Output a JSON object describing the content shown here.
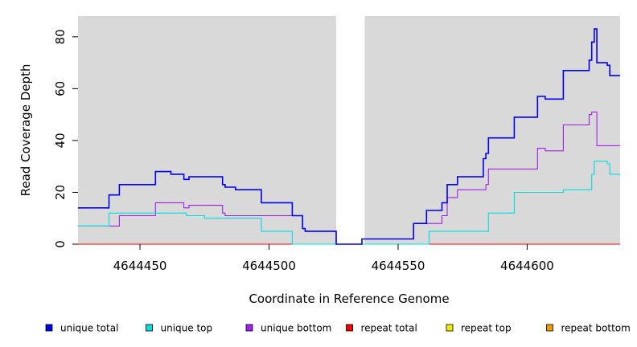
{
  "chart_data": {
    "type": "line",
    "xlabel": "Coordinate in Reference Genome",
    "ylabel": "Read Coverage Depth",
    "xlim": [
      4644426,
      4644636
    ],
    "ylim": [
      0,
      88
    ],
    "x_ticks": [
      4644450,
      4644500,
      4644550,
      4644600
    ],
    "y_ticks": [
      0,
      20,
      40,
      60,
      80
    ],
    "background": "#d9d9d9",
    "gap_region": [
      4644526,
      4644537
    ],
    "legend_position": "bottom",
    "series": [
      {
        "name": "unique total",
        "color": "#0000ee",
        "points": [
          [
            4644426,
            14
          ],
          [
            4644438,
            14
          ],
          [
            4644438,
            19
          ],
          [
            4644442,
            19
          ],
          [
            4644442,
            23
          ],
          [
            4644456,
            23
          ],
          [
            4644456,
            28
          ],
          [
            4644462,
            28
          ],
          [
            4644462,
            27
          ],
          [
            4644467,
            27
          ],
          [
            4644467,
            25
          ],
          [
            4644469,
            25
          ],
          [
            4644469,
            26
          ],
          [
            4644482,
            26
          ],
          [
            4644482,
            23
          ],
          [
            4644483,
            23
          ],
          [
            4644483,
            22
          ],
          [
            4644487,
            22
          ],
          [
            4644487,
            21
          ],
          [
            4644497,
            21
          ],
          [
            4644497,
            16
          ],
          [
            4644509,
            16
          ],
          [
            4644509,
            11
          ],
          [
            4644513,
            11
          ],
          [
            4644513,
            6
          ],
          [
            4644514,
            6
          ],
          [
            4644514,
            5
          ],
          [
            4644526,
            5
          ],
          [
            4644526,
            0
          ],
          [
            4644536,
            0
          ],
          [
            4644536,
            2
          ],
          [
            4644556,
            2
          ],
          [
            4644556,
            8
          ],
          [
            4644561,
            8
          ],
          [
            4644561,
            13
          ],
          [
            4644567,
            13
          ],
          [
            4644567,
            16
          ],
          [
            4644569,
            16
          ],
          [
            4644569,
            23
          ],
          [
            4644573,
            23
          ],
          [
            4644573,
            26
          ],
          [
            4644583,
            26
          ],
          [
            4644583,
            33
          ],
          [
            4644584,
            33
          ],
          [
            4644584,
            35
          ],
          [
            4644585,
            35
          ],
          [
            4644585,
            41
          ],
          [
            4644595,
            41
          ],
          [
            4644595,
            49
          ],
          [
            4644604,
            49
          ],
          [
            4644604,
            57
          ],
          [
            4644607,
            57
          ],
          [
            4644607,
            56
          ],
          [
            4644614,
            56
          ],
          [
            4644614,
            67
          ],
          [
            4644624,
            67
          ],
          [
            4644624,
            71
          ],
          [
            4644625,
            71
          ],
          [
            4644625,
            78
          ],
          [
            4644626,
            78
          ],
          [
            4644626,
            83
          ],
          [
            4644627,
            83
          ],
          [
            4644627,
            70
          ],
          [
            4644631,
            70
          ],
          [
            4644631,
            69
          ],
          [
            4644632,
            69
          ],
          [
            4644632,
            65
          ],
          [
            4644636,
            65
          ]
        ]
      },
      {
        "name": "unique top",
        "color": "#00dddd",
        "points": [
          [
            4644426,
            7
          ],
          [
            4644438,
            7
          ],
          [
            4644438,
            12
          ],
          [
            4644468,
            12
          ],
          [
            4644468,
            11
          ],
          [
            4644475,
            11
          ],
          [
            4644475,
            10
          ],
          [
            4644497,
            10
          ],
          [
            4644497,
            5
          ],
          [
            4644509,
            5
          ],
          [
            4644509,
            0
          ],
          [
            4644562,
            0
          ],
          [
            4644562,
            5
          ],
          [
            4644576,
            5
          ],
          [
            4644576,
            5
          ],
          [
            4644585,
            5
          ],
          [
            4644585,
            12
          ],
          [
            4644595,
            12
          ],
          [
            4644595,
            20
          ],
          [
            4644614,
            20
          ],
          [
            4644614,
            21
          ],
          [
            4644625,
            21
          ],
          [
            4644625,
            27
          ],
          [
            4644626,
            27
          ],
          [
            4644626,
            32
          ],
          [
            4644631,
            32
          ],
          [
            4644631,
            31
          ],
          [
            4644632,
            31
          ],
          [
            4644632,
            27
          ],
          [
            4644636,
            27
          ]
        ]
      },
      {
        "name": "unique bottom",
        "color": "#a020f0",
        "points": [
          [
            4644426,
            7
          ],
          [
            4644442,
            7
          ],
          [
            4644442,
            11
          ],
          [
            4644456,
            11
          ],
          [
            4644456,
            16
          ],
          [
            4644467,
            16
          ],
          [
            4644467,
            14
          ],
          [
            4644469,
            14
          ],
          [
            4644469,
            15
          ],
          [
            4644482,
            15
          ],
          [
            4644482,
            12
          ],
          [
            4644483,
            12
          ],
          [
            4644483,
            11
          ],
          [
            4644513,
            11
          ],
          [
            4644513,
            6
          ],
          [
            4644514,
            6
          ],
          [
            4644514,
            5
          ],
          [
            4644526,
            5
          ],
          [
            4644526,
            0
          ],
          [
            4644536,
            0
          ],
          [
            4644536,
            2
          ],
          [
            4644556,
            2
          ],
          [
            4644556,
            8
          ],
          [
            4644567,
            8
          ],
          [
            4644567,
            11
          ],
          [
            4644569,
            11
          ],
          [
            4644569,
            18
          ],
          [
            4644573,
            18
          ],
          [
            4644573,
            21
          ],
          [
            4644584,
            21
          ],
          [
            4644584,
            23
          ],
          [
            4644585,
            23
          ],
          [
            4644585,
            29
          ],
          [
            4644604,
            29
          ],
          [
            4644604,
            37
          ],
          [
            4644607,
            37
          ],
          [
            4644607,
            36
          ],
          [
            4644614,
            36
          ],
          [
            4644614,
            46
          ],
          [
            4644624,
            46
          ],
          [
            4644624,
            50
          ],
          [
            4644625,
            50
          ],
          [
            4644625,
            51
          ],
          [
            4644627,
            51
          ],
          [
            4644627,
            38
          ],
          [
            4644636,
            38
          ]
        ]
      },
      {
        "name": "repeat total",
        "color": "#ee0000",
        "points": [
          [
            4644426,
            0
          ],
          [
            4644636,
            0
          ]
        ]
      },
      {
        "name": "repeat top",
        "color": "#eeee00",
        "points": [
          [
            4644426,
            0
          ],
          [
            4644636,
            0
          ]
        ]
      },
      {
        "name": "repeat bottom",
        "color": "#ee9a00",
        "points": [
          [
            4644426,
            0
          ],
          [
            4644636,
            0
          ]
        ]
      }
    ]
  }
}
